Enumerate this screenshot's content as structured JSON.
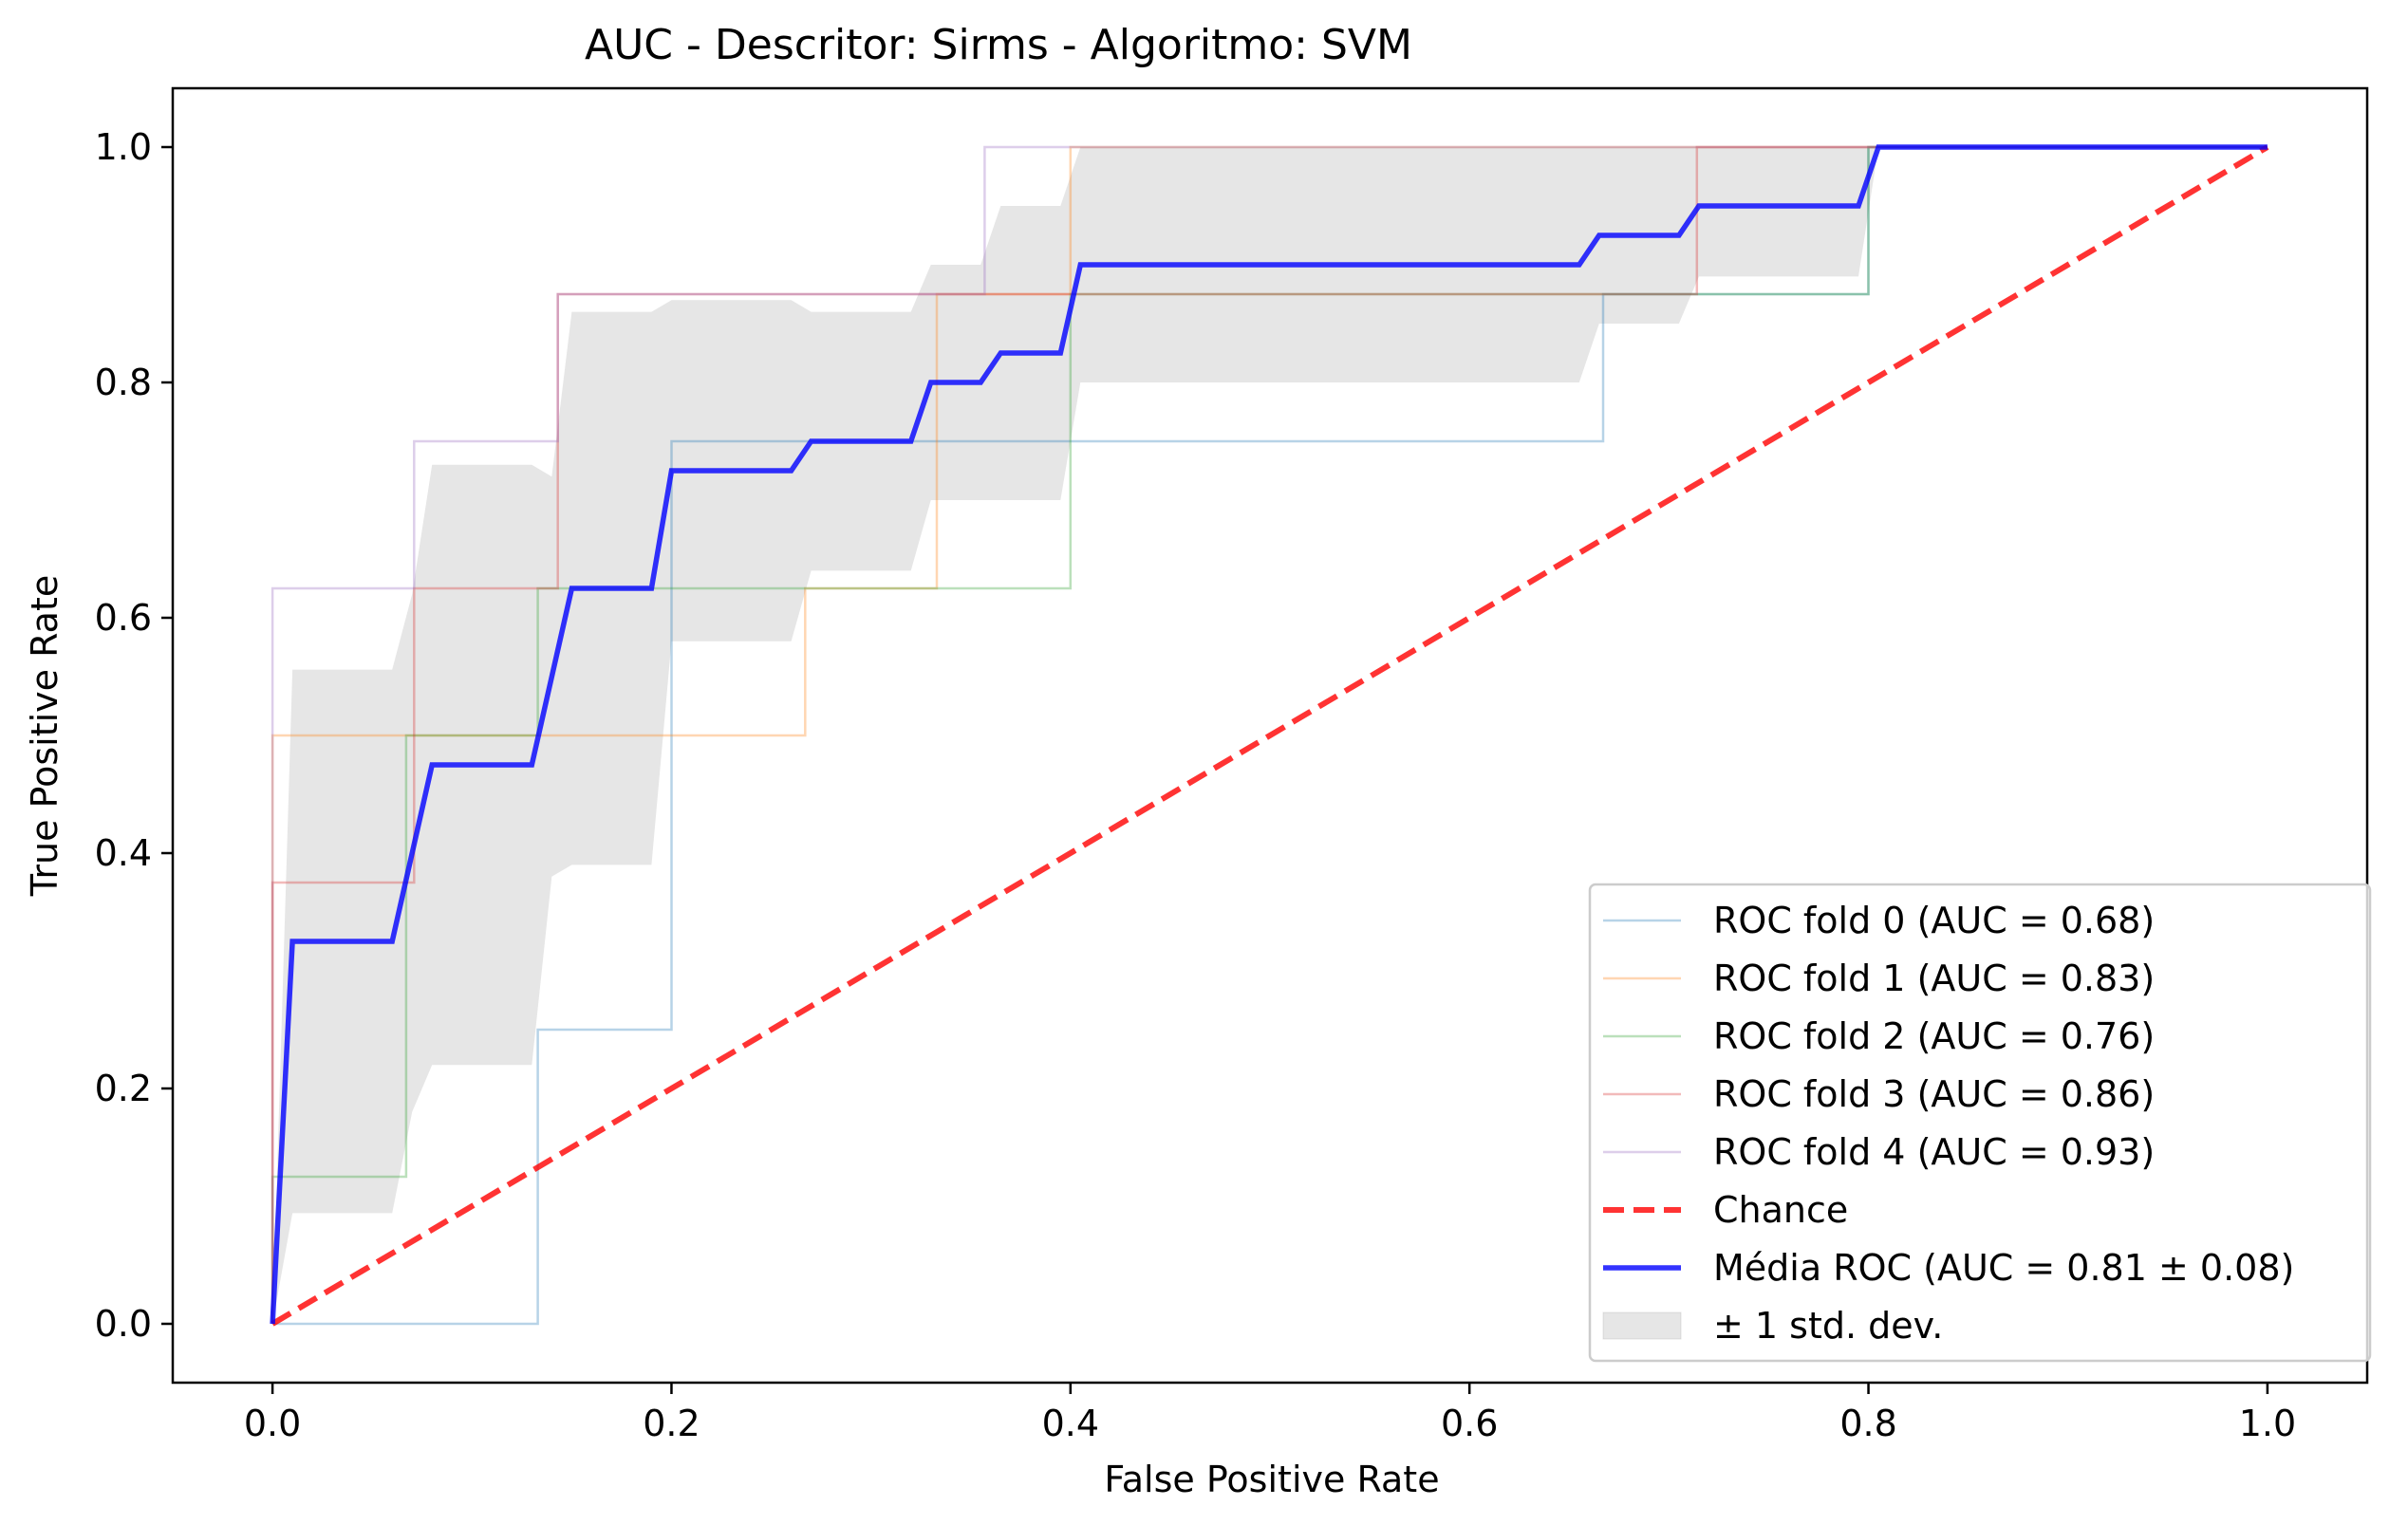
{
  "chart_data": {
    "type": "line",
    "title": "AUC - Descritor: Sirms - Algoritmo: SVM",
    "xlabel": "False Positive Rate",
    "ylabel": "True Positive Rate",
    "xlim": [
      -0.05,
      1.05
    ],
    "ylim": [
      -0.05,
      1.05
    ],
    "xticks": [
      "0.0",
      "0.2",
      "0.4",
      "0.6",
      "0.8",
      "1.0"
    ],
    "yticks": [
      "0.0",
      "0.2",
      "0.4",
      "0.6",
      "0.8",
      "1.0"
    ],
    "legend_position": "lower-right",
    "series": [
      {
        "name": "ROC fold 0 (AUC = 0.68)",
        "color": "#1f77b4",
        "style": "thin-faded",
        "x": [
          0,
          0.133,
          0.133,
          0.2,
          0.2,
          0.667,
          0.667,
          0.8,
          0.8,
          1.0
        ],
        "y": [
          0,
          0,
          0.25,
          0.25,
          0.75,
          0.75,
          0.875,
          0.875,
          1.0,
          1.0
        ]
      },
      {
        "name": "ROC fold 1 (AUC = 0.83)",
        "color": "#ff7f0e",
        "style": "thin-faded",
        "x": [
          0,
          0,
          0.267,
          0.267,
          0.333,
          0.333,
          0.4,
          0.4,
          1.0
        ],
        "y": [
          0,
          0.5,
          0.5,
          0.625,
          0.625,
          0.875,
          0.875,
          1.0,
          1.0
        ]
      },
      {
        "name": "ROC fold 2 (AUC = 0.76)",
        "color": "#2ca02c",
        "style": "thin-faded",
        "x": [
          0,
          0,
          0.067,
          0.067,
          0.133,
          0.133,
          0.4,
          0.4,
          0.8,
          0.8,
          1.0
        ],
        "y": [
          0,
          0.125,
          0.125,
          0.5,
          0.5,
          0.625,
          0.625,
          0.875,
          0.875,
          1.0,
          1.0
        ]
      },
      {
        "name": "ROC fold 3 (AUC = 0.86)",
        "color": "#d62728",
        "style": "thin-faded",
        "x": [
          0,
          0,
          0.071,
          0.071,
          0.143,
          0.143,
          0.714,
          0.714,
          1.0
        ],
        "y": [
          0,
          0.375,
          0.375,
          0.625,
          0.625,
          0.875,
          0.875,
          1.0,
          1.0
        ]
      },
      {
        "name": "ROC fold 4 (AUC = 0.93)",
        "color": "#9467bd",
        "style": "thin-faded",
        "x": [
          0,
          0,
          0.071,
          0.071,
          0.143,
          0.143,
          0.357,
          0.357,
          1.0
        ],
        "y": [
          0,
          0.625,
          0.625,
          0.75,
          0.75,
          0.875,
          0.875,
          1.0,
          1.0
        ]
      },
      {
        "name": "Chance",
        "color": "#ff0000",
        "style": "dashed",
        "x": [
          0,
          1
        ],
        "y": [
          0,
          1
        ]
      },
      {
        "name": "Média ROC (AUC = 0.81 ± 0.08)",
        "color": "#0000ff",
        "style": "thick",
        "x": [
          0,
          0.01,
          0.06,
          0.08,
          0.13,
          0.15,
          0.19,
          0.2,
          0.26,
          0.27,
          0.32,
          0.33,
          0.355,
          0.365,
          0.395,
          0.405,
          0.655,
          0.665,
          0.705,
          0.715,
          0.795,
          0.805,
          1.0
        ],
        "y": [
          0,
          0.325,
          0.325,
          0.475,
          0.475,
          0.625,
          0.625,
          0.725,
          0.725,
          0.75,
          0.75,
          0.8,
          0.8,
          0.825,
          0.825,
          0.9,
          0.9,
          0.925,
          0.925,
          0.95,
          0.95,
          1.0,
          1.0
        ]
      }
    ],
    "band": {
      "name": "± 1 std. dev.",
      "color": "#808080",
      "x": [
        0,
        0.01,
        0.06,
        0.07,
        0.08,
        0.13,
        0.14,
        0.15,
        0.19,
        0.2,
        0.26,
        0.27,
        0.32,
        0.33,
        0.355,
        0.365,
        0.395,
        0.405,
        0.655,
        0.665,
        0.705,
        0.715,
        0.795,
        0.805,
        1.0
      ],
      "upper": [
        0,
        0.556,
        0.556,
        0.62,
        0.73,
        0.73,
        0.72,
        0.86,
        0.86,
        0.87,
        0.87,
        0.86,
        0.86,
        0.9,
        0.9,
        0.95,
        0.95,
        1.0,
        1.0,
        1.0,
        1.0,
        1.0,
        1.0,
        1.0,
        1.0
      ],
      "lower": [
        0,
        0.094,
        0.094,
        0.18,
        0.22,
        0.22,
        0.38,
        0.39,
        0.39,
        0.58,
        0.58,
        0.64,
        0.64,
        0.7,
        0.7,
        0.7,
        0.7,
        0.8,
        0.8,
        0.85,
        0.85,
        0.89,
        0.89,
        1.0,
        1.0
      ]
    }
  }
}
